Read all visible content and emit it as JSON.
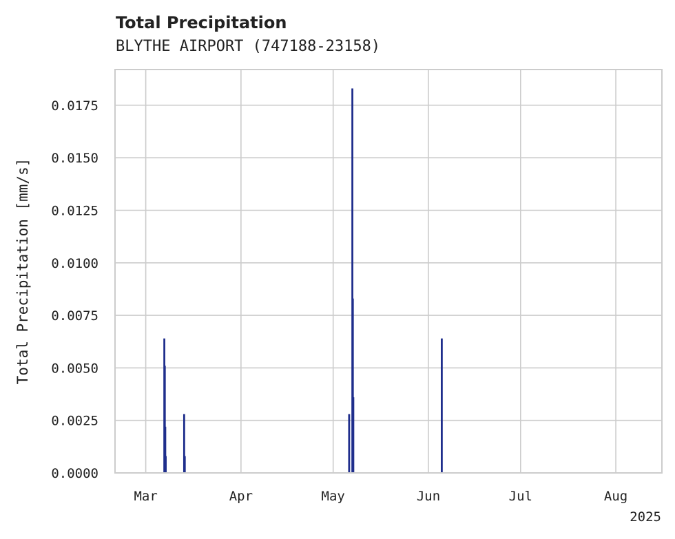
{
  "chart_data": {
    "type": "bar",
    "title": "Total Precipitation",
    "subtitle": "BLYTHE AIRPORT (747188-23158)",
    "xlabel": "",
    "ylabel": "Total Precipitation [mm/s]",
    "xaxis_year_label": "2025",
    "x_range_days": [
      -10,
      168
    ],
    "ylim": [
      0,
      0.0192
    ],
    "x_ticks": [
      {
        "label": "Mar",
        "day": 0
      },
      {
        "label": "Apr",
        "day": 31
      },
      {
        "label": "May",
        "day": 61
      },
      {
        "label": "Jun",
        "day": 92
      },
      {
        "label": "Jul",
        "day": 122
      },
      {
        "label": "Aug",
        "day": 153
      }
    ],
    "y_ticks": [
      {
        "label": "0.0000",
        "value": 0.0
      },
      {
        "label": "0.0025",
        "value": 0.0025
      },
      {
        "label": "0.0050",
        "value": 0.005
      },
      {
        "label": "0.0075",
        "value": 0.0075
      },
      {
        "label": "0.0100",
        "value": 0.01
      },
      {
        "label": "0.0125",
        "value": 0.0125
      },
      {
        "label": "0.0150",
        "value": 0.015
      },
      {
        "label": "0.0175",
        "value": 0.0175
      }
    ],
    "grid": true,
    "series": [
      {
        "name": "Total Precipitation",
        "color": "#1f2e8c",
        "points": [
          {
            "day": 6.05,
            "value": 0.0064
          },
          {
            "day": 6.2,
            "value": 0.0051
          },
          {
            "day": 6.35,
            "value": 0.0022
          },
          {
            "day": 6.5,
            "value": 0.0008
          },
          {
            "day": 12.5,
            "value": 0.0028
          },
          {
            "day": 12.7,
            "value": 0.0008
          },
          {
            "day": 66.2,
            "value": 0.0028
          },
          {
            "day": 67.25,
            "value": 0.0183
          },
          {
            "day": 67.4,
            "value": 0.0083
          },
          {
            "day": 67.55,
            "value": 0.0036
          },
          {
            "day": 96.35,
            "value": 0.0064
          }
        ]
      }
    ]
  }
}
